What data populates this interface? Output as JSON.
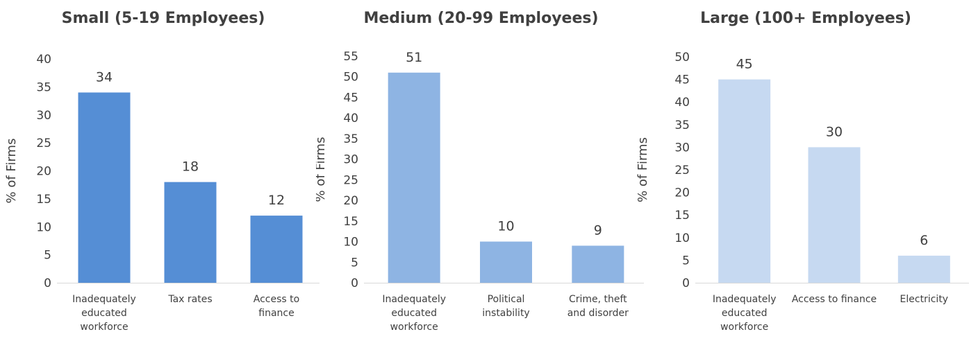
{
  "chart_data": [
    {
      "type": "bar",
      "title": "Small (5-19 Employees)",
      "ylabel": "% of Firms",
      "xlabel": "",
      "ylim": [
        0,
        40
      ],
      "yticks": [
        0,
        5,
        10,
        15,
        20,
        25,
        30,
        35,
        40
      ],
      "categories": [
        "Inadequately educated workforce",
        "Tax rates",
        "Access to finance"
      ],
      "category_lines": [
        [
          "Inadequately",
          "educated",
          "workforce"
        ],
        [
          "Tax rates"
        ],
        [
          "Access to",
          "finance"
        ]
      ],
      "values": [
        34,
        18,
        12
      ],
      "color": "#558ed5"
    },
    {
      "type": "bar",
      "title": "Medium (20-99 Employees)",
      "ylabel": "% of Firms",
      "xlabel": "",
      "ylim": [
        0,
        55
      ],
      "yticks": [
        0,
        5,
        10,
        15,
        20,
        25,
        30,
        35,
        40,
        45,
        50,
        55
      ],
      "categories": [
        "Inadequately educated workforce",
        "Political instability",
        "Crime, theft and disorder"
      ],
      "category_lines": [
        [
          "Inadequately",
          "educated",
          "workforce"
        ],
        [
          "Political",
          "instability"
        ],
        [
          "Crime, theft",
          "and disorder"
        ]
      ],
      "values": [
        51,
        10,
        9
      ],
      "color": "#8eb4e3"
    },
    {
      "type": "bar",
      "title": "Large (100+ Employees)",
      "ylabel": "% of Firms",
      "xlabel": "",
      "ylim": [
        0,
        50
      ],
      "yticks": [
        0,
        5,
        10,
        15,
        20,
        25,
        30,
        35,
        40,
        45,
        50
      ],
      "categories": [
        "Inadequately educated workforce",
        "Access to finance",
        "Electricity"
      ],
      "category_lines": [
        [
          "Inadequately",
          "educated",
          "workforce"
        ],
        [
          "Access to finance"
        ],
        [
          "Electricity"
        ]
      ],
      "values": [
        45,
        30,
        6
      ],
      "color": "#c6d9f1"
    }
  ]
}
